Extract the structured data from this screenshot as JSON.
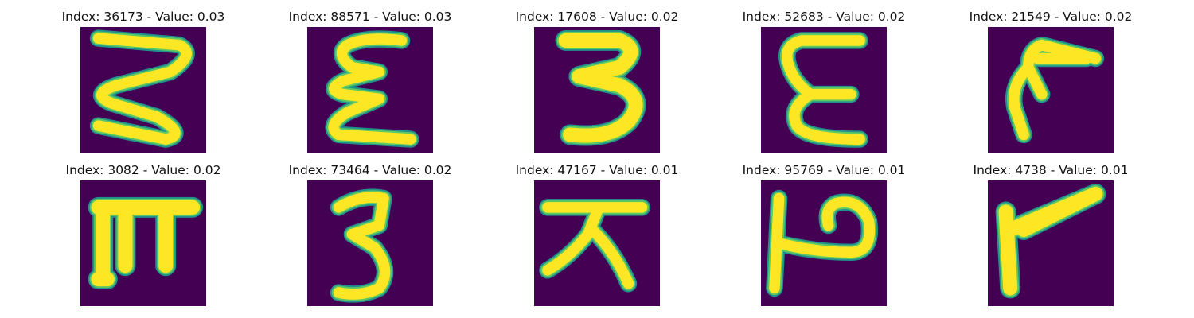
{
  "colors": {
    "background": "#440154",
    "stroke_edge": "#21918c",
    "stroke_mid": "#5ec962",
    "stroke_core": "#fde725"
  },
  "panels": [
    {
      "title": "Index: 36173 - Value: 0.03"
    },
    {
      "title": "Index: 88571 - Value: 0.03"
    },
    {
      "title": "Index: 17608 - Value: 0.02"
    },
    {
      "title": "Index: 52683 - Value: 0.02"
    },
    {
      "title": "Index: 21549 - Value: 0.02"
    },
    {
      "title": "Index: 3082 - Value: 0.02"
    },
    {
      "title": "Index: 73464 - Value: 0.02"
    },
    {
      "title": "Index: 47167 - Value: 0.01"
    },
    {
      "title": "Index: 95769 - Value: 0.01"
    },
    {
      "title": "Index: 4738 - Value: 0.01"
    }
  ]
}
